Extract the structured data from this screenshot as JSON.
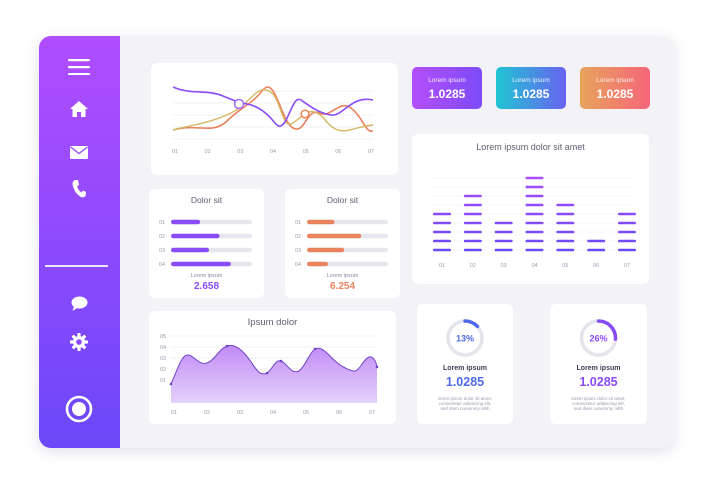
{
  "sidebar": {
    "icons": [
      "menu-icon",
      "home-icon",
      "mail-icon",
      "phone-icon",
      "chat-icon",
      "gear-icon",
      "record-icon"
    ]
  },
  "line_chart": {
    "x_labels": [
      "01",
      "02",
      "03",
      "04",
      "05",
      "06",
      "07"
    ]
  },
  "kpis": [
    {
      "label": "Lorem ipsum",
      "value": "1.0285"
    },
    {
      "label": "Lorem ipsum",
      "value": "1.0285"
    },
    {
      "label": "Lorem ipsum",
      "value": "1.0285"
    }
  ],
  "progress_card_1": {
    "title": "Dolor sit",
    "row_labels": [
      "01",
      "02",
      "03",
      "04"
    ],
    "progress": [
      0.36,
      0.6,
      0.47,
      0.74
    ],
    "footer_label": "Lorem ipsum",
    "footer_value": "2.658"
  },
  "progress_card_2": {
    "title": "Dolor sit",
    "row_labels": [
      "01",
      "02",
      "03",
      "04"
    ],
    "progress": [
      0.34,
      0.67,
      0.46,
      0.26
    ],
    "footer_label": "Lorem ipsum",
    "footer_value": "6.254"
  },
  "bar_chart": {
    "title": "Lorem ipsum dolor sit amet",
    "x_labels": [
      "01",
      "02",
      "03",
      "04",
      "05",
      "06",
      "07"
    ],
    "segments": [
      5,
      7,
      4,
      9,
      6,
      2,
      5
    ]
  },
  "area_chart": {
    "title": "Ipsum dolor",
    "y_labels": [
      "05",
      "04",
      "03",
      "02",
      "01"
    ],
    "x_labels": [
      "01",
      "02",
      "03",
      "04",
      "05",
      "06",
      "07"
    ]
  },
  "donut_1": {
    "percent_text": "13%",
    "percent": 0.13,
    "label": "Lorem ipsum",
    "value": "1.0285",
    "desc_lines": [
      "lorem ipsum dolor sit amet,",
      "consectetur adipiscing elit,",
      "sed diam nonummy nibh"
    ]
  },
  "donut_2": {
    "percent_text": "26%",
    "percent": 0.26,
    "label": "Lorem ipsum",
    "value": "1.0285",
    "desc_lines": [
      "lorem ipsum dolor sit amet,",
      "consectetur adipiscing elit,",
      "sed diam nonummy nibh"
    ]
  },
  "colors": {
    "purple": "#8a4bf9",
    "orange": "#e9835e",
    "yellow": "#d3b25a",
    "blue": "#4f6ae8",
    "kpi1": [
      "#b44efb",
      "#7c4cf6"
    ],
    "kpi2": [
      "#1fc5d3",
      "#6a62f0"
    ],
    "kpi3": [
      "#e7a45c",
      "#f6667a"
    ]
  }
}
